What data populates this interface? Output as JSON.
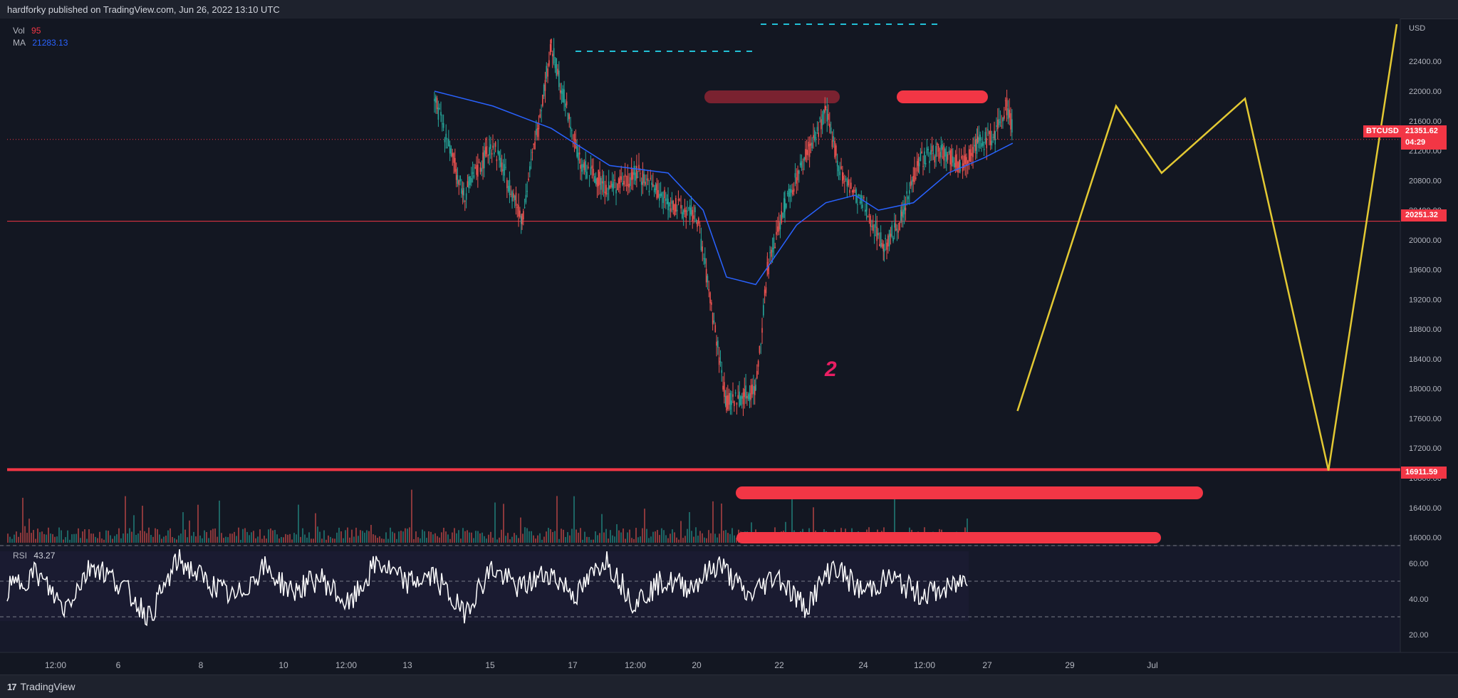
{
  "header": {
    "published": "hardforky published on TradingView.com, Jun 26, 2022 13:10 UTC"
  },
  "footer": {
    "logo_text": "TradingView",
    "logo_mark": "17"
  },
  "legend": {
    "vol_label": "Vol",
    "vol_value": "95",
    "ma_label": "MA",
    "ma_value": "21283.13",
    "rsi_label": "RSI",
    "rsi_value": "43.27"
  },
  "annotations": {
    "wave_label": "2"
  },
  "price_axis": {
    "currency": "USD",
    "symbol": "BTCUSD",
    "last_price": "21351.62",
    "countdown": "04:29",
    "level_1": "20251.32",
    "level_2": "16911.59"
  },
  "colors": {
    "background": "#131722",
    "up": "#26a69a",
    "down": "#ef5350",
    "ma": "#2962ff",
    "projection": "#e3c933",
    "zone": "#f23645",
    "dashed": "#22c1d6",
    "rsi": "#ffffff"
  },
  "chart_data": [
    {
      "type": "line",
      "title": "BTCUSD",
      "y_ticks": [
        "22400.00",
        "22000.00",
        "21600.00",
        "21200.00",
        "20800.00",
        "20400.00",
        "20000.00",
        "19600.00",
        "19200.00",
        "18800.00",
        "18400.00",
        "18000.00",
        "17600.00",
        "17200.00",
        "16800.00",
        "16400.00",
        "16000.00"
      ],
      "x_ticks": [
        "12:00",
        "6",
        "8",
        "10",
        "12:00",
        "13",
        "15",
        "17",
        "12:00",
        "20",
        "22",
        "24",
        "12:00",
        "27",
        "29",
        "Jul"
      ],
      "ylim": [
        15930,
        22900
      ],
      "series": [
        {
          "name": "Price",
          "points": [
            [
              0,
              21900
            ],
            [
              5,
              20600
            ],
            [
              10,
              21300
            ],
            [
              15,
              20300
            ],
            [
              20,
              22600
            ],
            [
              25,
              21000
            ],
            [
              30,
              20700
            ],
            [
              35,
              20900
            ],
            [
              40,
              20500
            ],
            [
              45,
              20300
            ],
            [
              50,
              17800
            ],
            [
              55,
              18000
            ],
            [
              57,
              19600
            ],
            [
              60,
              20500
            ],
            [
              64,
              21200
            ],
            [
              67,
              21700
            ],
            [
              70,
              20800
            ],
            [
              74,
              20400
            ],
            [
              77,
              19900
            ],
            [
              80,
              20300
            ],
            [
              83,
              21100
            ],
            [
              87,
              21200
            ],
            [
              90,
              21000
            ],
            [
              93,
              21300
            ],
            [
              96,
              21400
            ],
            [
              98,
              21800
            ],
            [
              99,
              21500
            ]
          ]
        },
        {
          "name": "MA",
          "points": [
            [
              0,
              22000
            ],
            [
              10,
              21800
            ],
            [
              20,
              21500
            ],
            [
              30,
              21000
            ],
            [
              40,
              20900
            ],
            [
              46,
              20400
            ],
            [
              50,
              19500
            ],
            [
              55,
              19400
            ],
            [
              62,
              20200
            ],
            [
              67,
              20500
            ],
            [
              72,
              20600
            ],
            [
              76,
              20400
            ],
            [
              82,
              20500
            ],
            [
              88,
              20900
            ],
            [
              94,
              21100
            ],
            [
              99,
              21300
            ]
          ]
        },
        {
          "name": "Projection",
          "points": [
            [
              50,
              17700
            ],
            [
              63,
              21800
            ],
            [
              69,
              20900
            ],
            [
              80,
              21900
            ],
            [
              91,
              16900
            ],
            [
              100,
              22900
            ]
          ]
        }
      ],
      "levels": [
        20251.32,
        16911.59
      ]
    },
    {
      "type": "line",
      "title": "RSI",
      "ylim": [
        10,
        70
      ],
      "y_ticks": [
        "60.00",
        "40.00",
        "20.00"
      ],
      "bands": [
        70,
        50,
        30
      ],
      "series": [
        {
          "name": "RSI",
          "values": [
            45,
            55,
            35,
            60,
            48,
            30,
            62,
            50,
            40,
            58,
            44,
            52,
            36,
            61,
            49,
            53,
            32,
            57,
            46,
            55,
            42,
            63,
            38,
            50,
            47,
            60,
            41,
            54,
            35,
            59,
            44,
            52,
            43
          ]
        }
      ]
    }
  ]
}
